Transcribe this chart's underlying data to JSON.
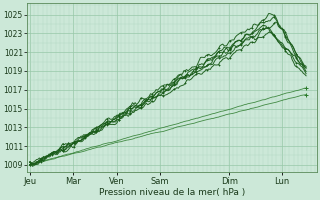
{
  "xlabel": "Pression niveau de la mer( hPa )",
  "background_color": "#cce8d8",
  "grid_color_minor": "#b0d8c0",
  "grid_color_major": "#98c8a8",
  "line_color_dark": "#1a5c1a",
  "line_color_thin": "#2a7a2a",
  "ylim": [
    1008.2,
    1026.2
  ],
  "xlim": [
    -0.05,
    5.5
  ],
  "day_labels": [
    "Jeu",
    "Mar",
    "Ven",
    "Sam",
    "Dim",
    "Lun"
  ],
  "day_positions": [
    0.0,
    0.83,
    1.67,
    2.5,
    3.83,
    4.83
  ],
  "yticks": [
    1009,
    1011,
    1013,
    1015,
    1017,
    1019,
    1021,
    1023,
    1025
  ],
  "num_points": 200
}
